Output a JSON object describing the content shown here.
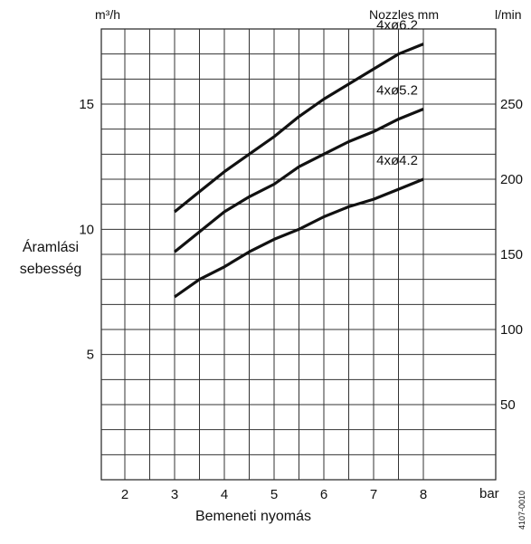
{
  "chart_data": {
    "type": "line",
    "xlabel": "Bemeneti nyomás",
    "x_unit": "bar",
    "ylabel_lines": [
      "Áramlási",
      "sebesség"
    ],
    "y_unit_left": "m³/h",
    "y_unit_right": "l/min",
    "legend_header": "Nozzles mm",
    "figure_code": "4107-0010",
    "xlim": [
      1.5,
      8
    ],
    "ylim": [
      0,
      18
    ],
    "grid": true,
    "x_ticks": [
      2,
      3,
      4,
      5,
      6,
      7,
      8
    ],
    "y_ticks_left": [
      5,
      10,
      15
    ],
    "y_ticks_right": [
      50,
      100,
      150,
      200,
      250
    ],
    "series": [
      {
        "name": "4xø6.2",
        "x": [
          3,
          3.5,
          4,
          4.5,
          5,
          5.5,
          6,
          6.5,
          7,
          7.5,
          8
        ],
        "y": [
          10.7,
          11.5,
          12.3,
          13.0,
          13.7,
          14.5,
          15.2,
          15.8,
          16.4,
          17.0,
          17.4
        ]
      },
      {
        "name": "4xø5.2",
        "x": [
          3,
          3.5,
          4,
          4.5,
          5,
          5.5,
          6,
          6.5,
          7,
          7.5,
          8
        ],
        "y": [
          9.1,
          9.9,
          10.7,
          11.3,
          11.8,
          12.5,
          13.0,
          13.5,
          13.9,
          14.4,
          14.8
        ]
      },
      {
        "name": "4xø4.2",
        "x": [
          3,
          3.5,
          4,
          4.5,
          5,
          5.5,
          6,
          6.5,
          7,
          7.5,
          8
        ],
        "y": [
          7.3,
          8.0,
          8.5,
          9.1,
          9.6,
          10.0,
          10.5,
          10.9,
          11.2,
          11.6,
          12.0
        ]
      }
    ]
  }
}
